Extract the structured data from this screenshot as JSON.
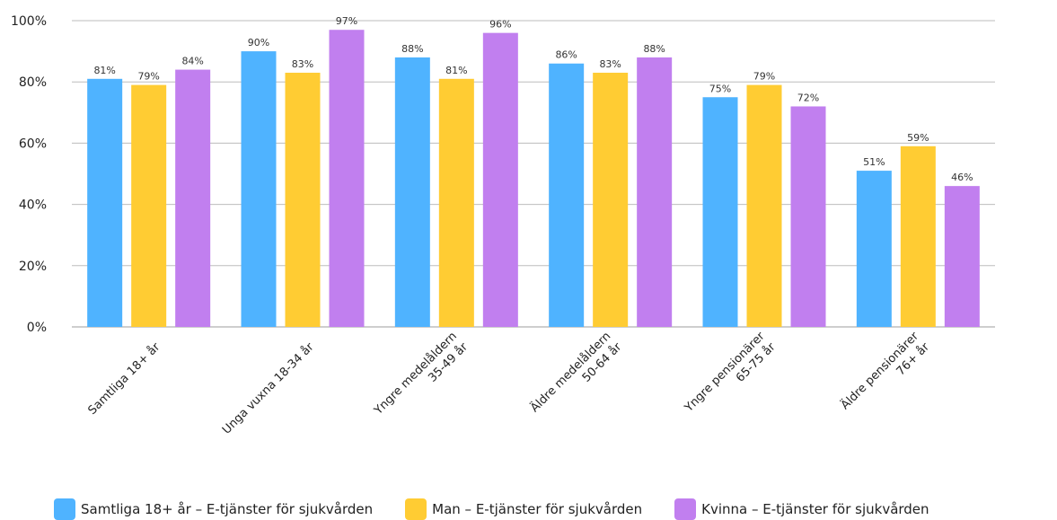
{
  "chart_data": {
    "type": "bar",
    "categories": [
      [
        "Samtliga 18+ år"
      ],
      [
        "Unga vuxna 18-34 år"
      ],
      [
        "Yngre medelåldern",
        "35-49 år"
      ],
      [
        "Äldre medelåldern",
        "50-64 år"
      ],
      [
        "Yngre pensionärer",
        "65-75 år"
      ],
      [
        "Äldre pensionärer",
        "76+ år"
      ]
    ],
    "series": [
      {
        "name": "Samtliga 18+ år – E-tjänster för sjukvården",
        "color": "#4fb3ff",
        "values": [
          81,
          90,
          88,
          86,
          75,
          51
        ]
      },
      {
        "name": "Man – E-tjänster för sjukvården",
        "color": "#ffcc33",
        "values": [
          79,
          83,
          81,
          83,
          79,
          59
        ]
      },
      {
        "name": "Kvinna – E-tjänster för sjukvården",
        "color": "#c17fef",
        "values": [
          84,
          97,
          96,
          88,
          72,
          46
        ]
      }
    ],
    "yticks": [
      "0%",
      "20%",
      "40%",
      "60%",
      "80%",
      "100%"
    ],
    "ylim": [
      0,
      100
    ],
    "value_suffix": "%",
    "grid": true,
    "legend_position": "bottom"
  }
}
